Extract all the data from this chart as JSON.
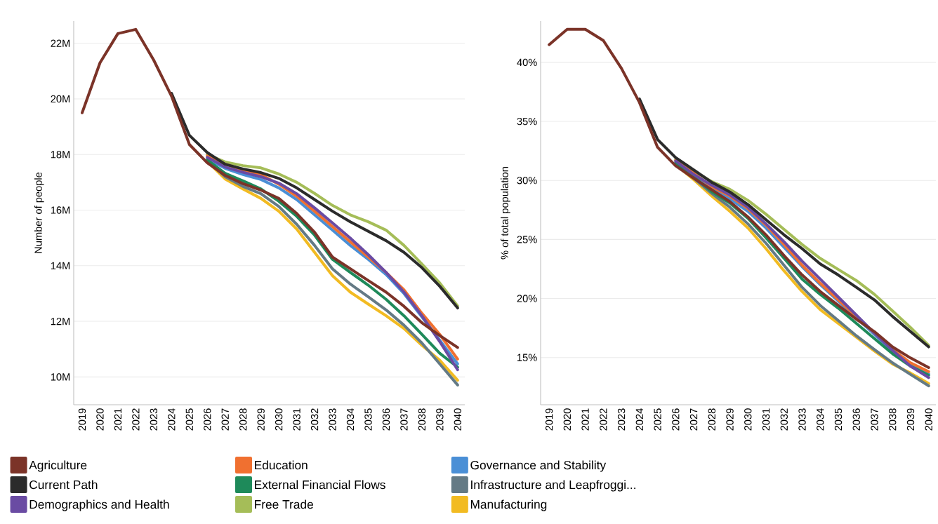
{
  "chart_data": [
    {
      "type": "line",
      "ylabel": "Number of people",
      "categories": [
        "2019",
        "2020",
        "2021",
        "2022",
        "2023",
        "2024",
        "2025",
        "2026",
        "2027",
        "2028",
        "2029",
        "2030",
        "2031",
        "2032",
        "2033",
        "2034",
        "2035",
        "2036",
        "2037",
        "2038",
        "2039",
        "2040"
      ],
      "ylim": [
        9,
        22.8
      ],
      "yticks": [
        {
          "value": 10,
          "label": "10M"
        },
        {
          "value": 12,
          "label": "12M"
        },
        {
          "value": 14,
          "label": "14M"
        },
        {
          "value": 16,
          "label": "16M"
        },
        {
          "value": 18,
          "label": "18M"
        },
        {
          "value": 20,
          "label": "20M"
        },
        {
          "value": 22,
          "label": "22M"
        }
      ],
      "grid": "y",
      "legend": "bottom",
      "marker": "none",
      "line_style": "solid",
      "series": [
        {
          "name": "Agriculture",
          "color": "#7b3328",
          "values": [
            19.5,
            21.3,
            22.35,
            22.5,
            21.4,
            20.1,
            18.36,
            17.7,
            17.25,
            16.95,
            16.72,
            16.42,
            15.88,
            15.2,
            14.31,
            13.89,
            13.47,
            13.05,
            12.54,
            11.95,
            11.49,
            11.06
          ]
        },
        {
          "name": "Current Path",
          "color": "#2b2b2b",
          "values": [
            null,
            null,
            null,
            null,
            null,
            20.2,
            18.69,
            18.07,
            17.65,
            17.48,
            17.35,
            17.14,
            16.8,
            16.38,
            15.96,
            15.58,
            15.24,
            14.9,
            14.48,
            13.93,
            13.26,
            12.48
          ]
        },
        {
          "name": "Demographics and Health",
          "color": "#6a4ba3",
          "values": [
            null,
            null,
            null,
            null,
            null,
            null,
            null,
            17.9,
            17.55,
            17.36,
            17.2,
            16.97,
            16.59,
            16.08,
            15.54,
            14.99,
            14.4,
            13.76,
            13.05,
            12.2,
            11.27,
            10.26
          ]
        },
        {
          "name": "Education",
          "color": "#f07030",
          "values": [
            null,
            null,
            null,
            null,
            null,
            null,
            null,
            17.95,
            17.65,
            17.45,
            17.28,
            16.93,
            16.5,
            15.96,
            15.41,
            14.86,
            14.31,
            13.76,
            13.13,
            12.29,
            11.53,
            10.64
          ]
        },
        {
          "name": "External Financial Flows",
          "color": "#1e8a5a",
          "values": [
            null,
            null,
            null,
            null,
            null,
            null,
            null,
            17.8,
            17.32,
            17.05,
            16.76,
            16.32,
            15.78,
            15.1,
            14.23,
            13.76,
            13.3,
            12.79,
            12.2,
            11.53,
            10.85,
            10.35
          ]
        },
        {
          "name": "Free Trade",
          "color": "#a5bd58",
          "values": [
            null,
            null,
            null,
            null,
            null,
            null,
            null,
            18.0,
            17.73,
            17.6,
            17.52,
            17.3,
            17.0,
            16.6,
            16.17,
            15.83,
            15.58,
            15.28,
            14.73,
            14.06,
            13.38,
            12.55
          ]
        },
        {
          "name": "Governance and Stability",
          "color": "#4a8fd6",
          "values": [
            null,
            null,
            null,
            null,
            null,
            null,
            null,
            17.85,
            17.5,
            17.28,
            17.1,
            16.8,
            16.38,
            15.83,
            15.28,
            14.73,
            14.23,
            13.68,
            13.0,
            12.16,
            11.32,
            10.47
          ]
        },
        {
          "name": "Infrastructure and Leapfroggi...",
          "color": "#647a85",
          "values": [
            null,
            null,
            null,
            null,
            null,
            null,
            null,
            17.78,
            17.2,
            16.85,
            16.59,
            16.13,
            15.49,
            14.73,
            13.89,
            13.34,
            12.88,
            12.41,
            11.86,
            11.22,
            10.47,
            9.71
          ]
        },
        {
          "name": "Manufacturing",
          "color": "#f2bb22",
          "values": [
            null,
            null,
            null,
            null,
            null,
            null,
            null,
            17.75,
            17.12,
            16.76,
            16.42,
            15.96,
            15.32,
            14.48,
            13.64,
            13.05,
            12.62,
            12.2,
            11.74,
            11.14,
            10.6,
            9.88
          ]
        }
      ]
    },
    {
      "type": "line",
      "ylabel": "% of total population",
      "categories": [
        "2019",
        "2020",
        "2021",
        "2022",
        "2023",
        "2024",
        "2025",
        "2026",
        "2027",
        "2028",
        "2029",
        "2030",
        "2031",
        "2032",
        "2033",
        "2034",
        "2035",
        "2036",
        "2037",
        "2038",
        "2039",
        "2040"
      ],
      "ylim": [
        11,
        43.5
      ],
      "yticks": [
        {
          "value": 15,
          "label": "15%"
        },
        {
          "value": 20,
          "label": "20%"
        },
        {
          "value": 25,
          "label": "25%"
        },
        {
          "value": 30,
          "label": "30%"
        },
        {
          "value": 35,
          "label": "35%"
        },
        {
          "value": 40,
          "label": "40%"
        }
      ],
      "grid": "y",
      "marker": "none",
      "line_style": "solid",
      "series": [
        {
          "color": "#7b3328",
          "values": [
            41.5,
            42.8,
            42.8,
            41.85,
            39.5,
            36.6,
            32.81,
            31.24,
            30.19,
            29.2,
            28.2,
            26.91,
            25.39,
            23.63,
            21.99,
            20.59,
            19.41,
            18.24,
            17.19,
            15.9,
            14.96,
            14.15
          ]
        },
        {
          "color": "#2b2b2b",
          "values": [
            null,
            null,
            null,
            null,
            null,
            36.9,
            33.47,
            31.94,
            30.89,
            29.84,
            29.02,
            27.96,
            26.67,
            25.39,
            24.22,
            22.93,
            21.99,
            20.94,
            19.88,
            18.48,
            17.19,
            15.9
          ]
        },
        {
          "color": "#6a4ba3",
          "values": [
            null,
            null,
            null,
            null,
            null,
            null,
            null,
            31.65,
            30.5,
            29.6,
            28.78,
            27.73,
            26.32,
            24.8,
            23.16,
            21.64,
            20.12,
            18.59,
            17.07,
            15.62,
            14.26,
            13.3
          ]
        },
        {
          "color": "#f07030",
          "values": [
            null,
            null,
            null,
            null,
            null,
            null,
            null,
            31.7,
            30.6,
            29.48,
            28.67,
            27.61,
            26.21,
            24.57,
            22.81,
            21.29,
            19.88,
            18.48,
            17.07,
            15.67,
            14.55,
            13.8
          ]
        },
        {
          "color": "#1e8a5a",
          "values": [
            null,
            null,
            null,
            null,
            null,
            null,
            null,
            31.45,
            30.3,
            29.05,
            28.08,
            26.79,
            25.15,
            23.4,
            21.64,
            20.35,
            19.18,
            17.89,
            16.6,
            15.32,
            14.26,
            13.5
          ]
        },
        {
          "color": "#a5bd58",
          "values": [
            null,
            null,
            null,
            null,
            null,
            null,
            null,
            31.8,
            30.8,
            29.9,
            29.25,
            28.31,
            27.14,
            25.85,
            24.57,
            23.4,
            22.46,
            21.52,
            20.35,
            18.95,
            17.54,
            16.02
          ]
        },
        {
          "color": "#4a8fd6",
          "values": [
            null,
            null,
            null,
            null,
            null,
            null,
            null,
            31.55,
            30.42,
            29.37,
            28.43,
            27.38,
            25.97,
            24.33,
            22.69,
            21.17,
            19.77,
            18.36,
            16.96,
            15.5,
            14.45,
            13.6
          ]
        },
        {
          "color": "#647a85",
          "values": [
            null,
            null,
            null,
            null,
            null,
            null,
            null,
            31.4,
            30.19,
            28.9,
            27.73,
            26.32,
            24.68,
            22.81,
            20.94,
            19.41,
            18.13,
            16.84,
            15.67,
            14.55,
            13.56,
            12.6
          ]
        },
        {
          "color": "#f2bb22",
          "values": [
            null,
            null,
            null,
            null,
            null,
            null,
            null,
            31.35,
            30.07,
            28.67,
            27.38,
            25.97,
            24.22,
            22.34,
            20.59,
            19.06,
            17.89,
            16.72,
            15.55,
            14.45,
            13.68,
            12.8
          ]
        }
      ]
    }
  ]
}
